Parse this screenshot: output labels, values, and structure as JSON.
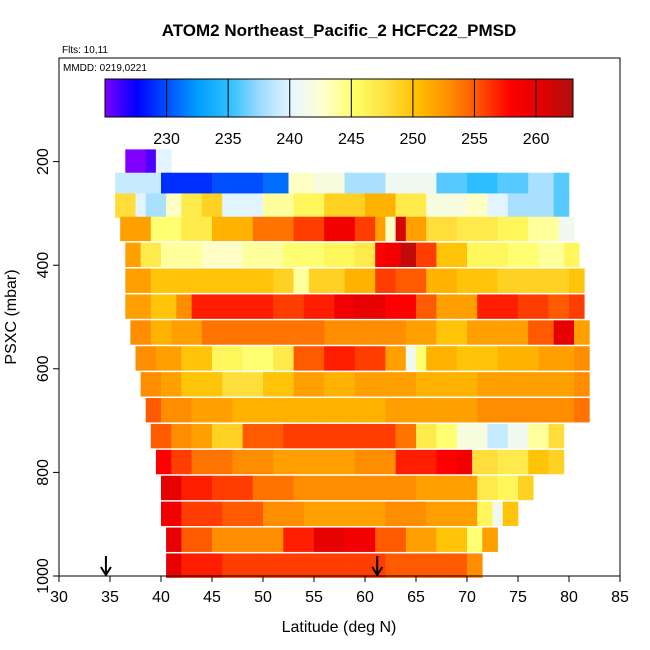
{
  "chart_data": {
    "type": "heatmap",
    "title": "ATOM2 Northeast_Pacific_2 HCFC22_PMSD",
    "annotations": [
      "Flts: 10,11",
      "MMDD: 0219,0221"
    ],
    "xlabel": "Latitude (deg N)",
    "ylabel": "PSXC (mbar)",
    "xlim": [
      30,
      85
    ],
    "ylim": [
      1000,
      0
    ],
    "x_ticks": [
      30,
      35,
      40,
      45,
      50,
      55,
      60,
      65,
      70,
      75,
      80,
      85
    ],
    "y_ticks": [
      200,
      400,
      600,
      800,
      1000
    ],
    "colorbar": {
      "range": [
        225,
        263
      ],
      "tick_values": [
        230,
        235,
        240,
        245,
        250,
        255,
        260
      ],
      "colors": [
        "#7f00ff",
        "#0000ff",
        "#0050ff",
        "#00a0ff",
        "#30c0ff",
        "#a0dcff",
        "#e8f6ff",
        "#ffffd0",
        "#ffff66",
        "#ffe040",
        "#ffc000",
        "#ff9000",
        "#ff5000",
        "#ff0000",
        "#e00000",
        "#b01010"
      ]
    },
    "flight_markers_lat": [
      34.6,
      61.2
    ],
    "rows": [
      {
        "p": 200,
        "segments": [
          [
            36.5,
            190
          ],
          [
            37.5,
            215
          ],
          [
            38.5,
            226
          ],
          [
            39.5,
            240
          ]
        ]
      },
      {
        "p": 245,
        "segments": [
          [
            35.5,
            239
          ],
          [
            40,
            229
          ],
          [
            45,
            230
          ],
          [
            50,
            231
          ],
          [
            52.5,
            243
          ],
          [
            55,
            242
          ],
          [
            58,
            238
          ],
          [
            62,
            241
          ],
          [
            67,
            236
          ],
          [
            70,
            235
          ],
          [
            73,
            236
          ],
          [
            76,
            238
          ],
          [
            78.5,
            236
          ]
        ]
      },
      {
        "p": 285,
        "segments": [
          [
            35.5,
            248
          ],
          [
            37.5,
            240
          ],
          [
            38.5,
            238
          ],
          [
            40.5,
            243
          ],
          [
            42,
            247
          ],
          [
            44,
            249
          ],
          [
            46,
            240
          ],
          [
            50,
            244
          ],
          [
            53,
            246
          ],
          [
            56,
            249
          ],
          [
            60,
            251
          ],
          [
            63,
            247
          ],
          [
            66,
            242
          ],
          [
            70,
            243
          ],
          [
            72,
            240
          ],
          [
            74,
            238
          ],
          [
            76.5,
            238
          ],
          [
            78.5,
            236
          ]
        ]
      },
      {
        "p": 330,
        "segments": [
          [
            36,
            252
          ],
          [
            39,
            245
          ],
          [
            42,
            247
          ],
          [
            45,
            251
          ],
          [
            49,
            254
          ],
          [
            53,
            256
          ],
          [
            56,
            259
          ],
          [
            59,
            256
          ],
          [
            61,
            252
          ],
          [
            62,
            243
          ],
          [
            63,
            261
          ],
          [
            64,
            252
          ],
          [
            66,
            248
          ],
          [
            69,
            247
          ],
          [
            73,
            246
          ],
          [
            76,
            244
          ],
          [
            79,
            241
          ]
        ]
      },
      {
        "p": 380,
        "segments": [
          [
            36.5,
            252
          ],
          [
            38,
            247
          ],
          [
            40,
            244
          ],
          [
            44,
            243
          ],
          [
            48,
            244
          ],
          [
            52,
            245
          ],
          [
            56,
            246
          ],
          [
            59,
            247
          ],
          [
            61,
            258
          ],
          [
            62,
            259
          ],
          [
            63.5,
            262
          ],
          [
            65,
            256
          ],
          [
            67,
            250
          ],
          [
            70,
            246
          ],
          [
            74,
            245
          ],
          [
            77,
            244
          ],
          [
            79.5,
            246
          ]
        ]
      },
      {
        "p": 430,
        "segments": [
          [
            36.5,
            252
          ],
          [
            39,
            250
          ],
          [
            42,
            250
          ],
          [
            47,
            250
          ],
          [
            51,
            249
          ],
          [
            53,
            244
          ],
          [
            54.5,
            249
          ],
          [
            58,
            251
          ],
          [
            61,
            256
          ],
          [
            63,
            255
          ],
          [
            66,
            251
          ],
          [
            69,
            250
          ],
          [
            73,
            249
          ],
          [
            77,
            249
          ],
          [
            80,
            250
          ]
        ]
      },
      {
        "p": 480,
        "segments": [
          [
            36.5,
            252
          ],
          [
            39,
            250
          ],
          [
            41.5,
            253
          ],
          [
            43,
            257
          ],
          [
            47,
            257
          ],
          [
            51,
            256
          ],
          [
            54,
            257
          ],
          [
            57,
            259
          ],
          [
            59,
            260
          ],
          [
            62,
            258
          ],
          [
            65,
            255
          ],
          [
            67,
            252
          ],
          [
            69,
            252
          ],
          [
            71,
            257
          ],
          [
            75,
            256
          ],
          [
            78,
            255
          ],
          [
            80,
            256
          ]
        ]
      },
      {
        "p": 530,
        "segments": [
          [
            37,
            253
          ],
          [
            39,
            251
          ],
          [
            41,
            252
          ],
          [
            44,
            254
          ],
          [
            48,
            254
          ],
          [
            52,
            254
          ],
          [
            56,
            253
          ],
          [
            60,
            253
          ],
          [
            64,
            252
          ],
          [
            67,
            250
          ],
          [
            70,
            252
          ],
          [
            73,
            252
          ],
          [
            76,
            255
          ],
          [
            78.5,
            260
          ],
          [
            80.5,
            252
          ]
        ]
      },
      {
        "p": 580,
        "segments": [
          [
            37.5,
            253
          ],
          [
            39.5,
            252
          ],
          [
            42,
            250
          ],
          [
            45,
            246
          ],
          [
            48,
            245
          ],
          [
            51,
            247
          ],
          [
            53,
            255
          ],
          [
            56,
            257
          ],
          [
            59,
            256
          ],
          [
            62,
            252
          ],
          [
            64,
            241
          ],
          [
            65,
            245
          ],
          [
            66,
            251
          ],
          [
            69,
            250
          ],
          [
            73,
            251
          ],
          [
            77,
            252
          ],
          [
            80.5,
            253
          ]
        ]
      },
      {
        "p": 630,
        "segments": [
          [
            38,
            253
          ],
          [
            40,
            252
          ],
          [
            42,
            250
          ],
          [
            46,
            248
          ],
          [
            50,
            250
          ],
          [
            53,
            252
          ],
          [
            56,
            251
          ],
          [
            59,
            252
          ],
          [
            62,
            252
          ],
          [
            65,
            251
          ],
          [
            68,
            251
          ],
          [
            71,
            252
          ],
          [
            74,
            252
          ],
          [
            77,
            252
          ],
          [
            80.5,
            253
          ]
        ]
      },
      {
        "p": 680,
        "segments": [
          [
            38.5,
            255
          ],
          [
            40,
            253
          ],
          [
            43,
            252
          ],
          [
            47,
            251
          ],
          [
            51,
            251
          ],
          [
            54,
            251
          ],
          [
            58,
            251
          ],
          [
            62,
            252
          ],
          [
            65,
            252
          ],
          [
            68,
            252
          ],
          [
            71,
            253
          ],
          [
            74,
            253
          ],
          [
            77,
            253
          ],
          [
            80.5,
            254
          ]
        ]
      },
      {
        "p": 730,
        "segments": [
          [
            39,
            255
          ],
          [
            41,
            253
          ],
          [
            43,
            252
          ],
          [
            45,
            249
          ],
          [
            48,
            255
          ],
          [
            52,
            256
          ],
          [
            56,
            256
          ],
          [
            60,
            256
          ],
          [
            63,
            254
          ],
          [
            65,
            247
          ],
          [
            67,
            245
          ],
          [
            69,
            242
          ],
          [
            72,
            239
          ],
          [
            74,
            241
          ],
          [
            76,
            244
          ],
          [
            78,
            248
          ]
        ]
      },
      {
        "p": 780,
        "segments": [
          [
            39.5,
            258
          ],
          [
            41,
            256
          ],
          [
            43,
            254
          ],
          [
            47,
            253
          ],
          [
            51,
            252
          ],
          [
            55,
            252
          ],
          [
            59,
            253
          ],
          [
            63,
            257
          ],
          [
            67,
            258
          ],
          [
            69,
            259
          ],
          [
            70.5,
            248
          ],
          [
            73,
            247
          ],
          [
            76,
            250
          ],
          [
            78,
            249
          ]
        ]
      },
      {
        "p": 830,
        "segments": [
          [
            40,
            260
          ],
          [
            42,
            257
          ],
          [
            45,
            256
          ],
          [
            49,
            254
          ],
          [
            53,
            253
          ],
          [
            57,
            253
          ],
          [
            61,
            253
          ],
          [
            65,
            252
          ],
          [
            69,
            252
          ],
          [
            71,
            247
          ],
          [
            73,
            246
          ],
          [
            75,
            249
          ]
        ]
      },
      {
        "p": 880,
        "segments": [
          [
            40,
            259
          ],
          [
            42,
            256
          ],
          [
            46,
            255
          ],
          [
            50,
            253
          ],
          [
            54,
            252
          ],
          [
            58,
            252
          ],
          [
            62,
            253
          ],
          [
            66,
            252
          ],
          [
            70,
            252
          ],
          [
            71,
            246
          ],
          [
            72.5,
            241
          ],
          [
            73.5,
            250
          ]
        ]
      },
      {
        "p": 930,
        "segments": [
          [
            40.5,
            260
          ],
          [
            42,
            255
          ],
          [
            45,
            253
          ],
          [
            48,
            253
          ],
          [
            52,
            257
          ],
          [
            55,
            260
          ],
          [
            58,
            259
          ],
          [
            61,
            255
          ],
          [
            64,
            252
          ],
          [
            67,
            250
          ],
          [
            70,
            245
          ],
          [
            71.5,
            252
          ]
        ]
      },
      {
        "p": 980,
        "segments": [
          [
            40.5,
            260
          ],
          [
            42,
            257
          ],
          [
            46,
            256
          ],
          [
            50,
            256
          ],
          [
            54,
            256
          ],
          [
            58,
            256
          ],
          [
            62,
            255
          ],
          [
            66,
            255
          ],
          [
            70,
            253
          ]
        ]
      }
    ]
  }
}
